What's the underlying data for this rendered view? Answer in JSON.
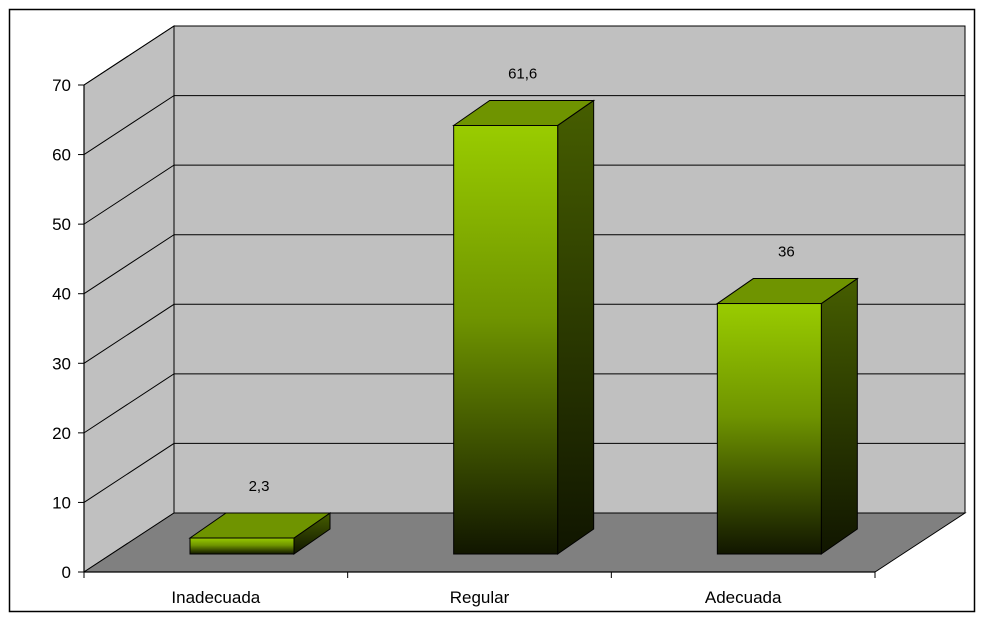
{
  "chart_data": {
    "type": "bar",
    "three_d": true,
    "title": "",
    "xlabel": "",
    "ylabel": "",
    "categories": [
      "Inadecuada",
      "Regular",
      "Adecuada"
    ],
    "values": [
      2.3,
      61.6,
      36
    ],
    "data_labels": [
      "2,3",
      "61,6",
      "36"
    ],
    "ylim": [
      0,
      70
    ],
    "yticks": [
      0,
      10,
      20,
      30,
      40,
      50,
      60,
      70
    ],
    "grid": true,
    "legend": "none",
    "colors": {
      "bar_front_light": "#99cc00",
      "bar_front_dark": "#111600",
      "bar_top": "#6f9400",
      "bar_side": "#3d5200",
      "back_wall": "#c0c0c0",
      "side_wall": "#c0c0c0",
      "floor": "#808080",
      "border": "#000000"
    }
  }
}
